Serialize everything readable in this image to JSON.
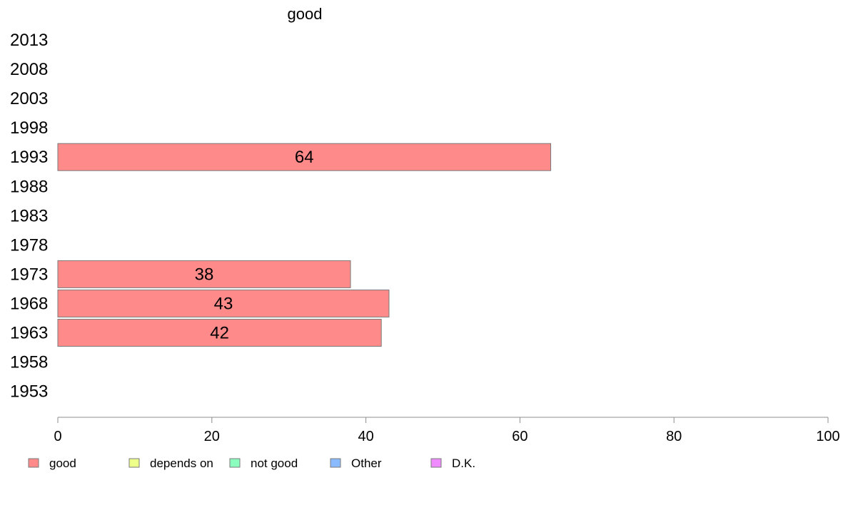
{
  "chart_data": {
    "type": "bar",
    "orientation": "horizontal",
    "title": "good",
    "categories": [
      "2013",
      "2008",
      "2003",
      "1998",
      "1993",
      "1988",
      "1983",
      "1978",
      "1973",
      "1968",
      "1963",
      "1958",
      "1953"
    ],
    "series": [
      {
        "name": "good",
        "color": "#ff8a8a",
        "values": [
          null,
          null,
          null,
          null,
          64,
          null,
          null,
          null,
          38,
          43,
          42,
          null,
          null
        ],
        "display_values": [
          null,
          null,
          null,
          null,
          64,
          null,
          null,
          null,
          38,
          43,
          42,
          null,
          null
        ]
      }
    ],
    "xlim": [
      0,
      100
    ],
    "xticks": [
      0,
      20,
      40,
      60,
      80,
      100
    ],
    "grid": false,
    "legend_position": "bottom",
    "legend": [
      {
        "label": "good",
        "color": "#ff8a8a"
      },
      {
        "label": "depends on",
        "color": "#eeff8a"
      },
      {
        "label": "not good",
        "color": "#8affbe"
      },
      {
        "label": "Other",
        "color": "#8abaff"
      },
      {
        "label": "D.K.",
        "color": "#f08aff"
      }
    ]
  }
}
